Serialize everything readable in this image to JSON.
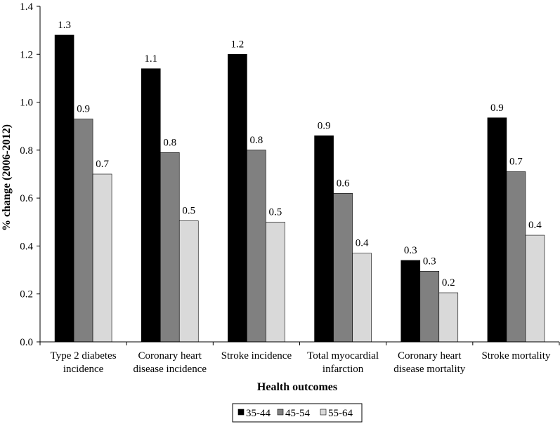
{
  "chart_data": {
    "type": "bar",
    "title": "",
    "xlabel": "Health outcomes",
    "ylabel": "% change (2006-2012)",
    "ylim": [
      0,
      1.4
    ],
    "yticks": [
      "0.0",
      "0.2",
      "0.4",
      "0.6",
      "0.8",
      "1.0",
      "1.2",
      "1.4"
    ],
    "categories": [
      [
        "Type 2 diabetes",
        "incidence"
      ],
      [
        "Coronary heart",
        "disease incidence"
      ],
      [
        "Stroke incidence"
      ],
      [
        "Total myocardial",
        "infarction"
      ],
      [
        "Coronary heart",
        "disease mortality"
      ],
      [
        "Stroke mortality"
      ]
    ],
    "series": [
      {
        "name": "35-44",
        "color": "#000000",
        "values": [
          1.28,
          1.14,
          1.2,
          0.86,
          0.34,
          0.935
        ],
        "labels": [
          "1.3",
          "1.1",
          "1.2",
          "0.9",
          "0.3",
          "0.9"
        ]
      },
      {
        "name": "45-54",
        "color": "#808080",
        "values": [
          0.93,
          0.79,
          0.8,
          0.62,
          0.295,
          0.71
        ],
        "labels": [
          "0.9",
          "0.8",
          "0.8",
          "0.6",
          "0.3",
          "0.7"
        ]
      },
      {
        "name": "55-64",
        "color": "#d9d9d9",
        "values": [
          0.7,
          0.505,
          0.5,
          0.37,
          0.205,
          0.445
        ],
        "labels": [
          "0.7",
          "0.5",
          "0.5",
          "0.4",
          "0.2",
          "0.4"
        ]
      }
    ],
    "legend_position": "bottom-center",
    "grid": false
  }
}
